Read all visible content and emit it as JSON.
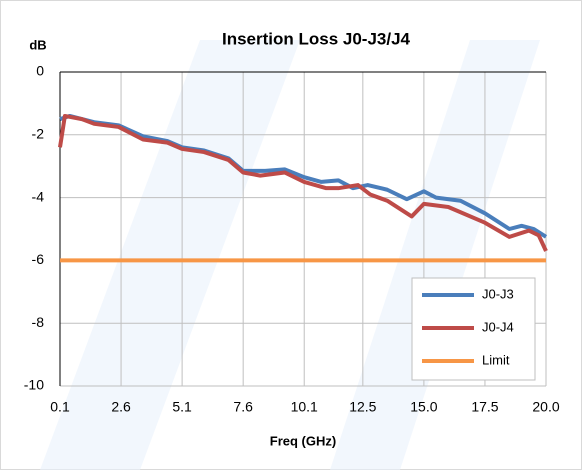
{
  "chart_data": {
    "type": "line",
    "title": "Insertion Loss J0-J3/J4",
    "y_label": "dB",
    "x_label": "Freq (GHz)",
    "xlim": [
      0.1,
      20
    ],
    "xticks": [
      0.1,
      2.6,
      5.1,
      7.6,
      10.1,
      12.5,
      {
        "value": 15,
        "label": "15.0"
      },
      17.5,
      {
        "value": 20,
        "label": "20.0"
      }
    ],
    "ylim": [
      -10,
      0
    ],
    "yticks": [
      0,
      -2,
      -4,
      -6,
      -8,
      -10
    ],
    "grid": true,
    "legend": "lower right",
    "series": [
      {
        "name": "J0-J3",
        "color": "#4a7ebb",
        "x": [
          0.1,
          0.5,
          1,
          1.5,
          2.5,
          3.5,
          4.5,
          5.1,
          6,
          7,
          7.6,
          8.5,
          9.3,
          10.1,
          10.8,
          11.5,
          12.1,
          12.7,
          13.5,
          14.3,
          15,
          15.5,
          16.5,
          17.5,
          18.5,
          19,
          19.5,
          20
        ],
        "values": [
          -1.5,
          -1.4,
          -1.5,
          -1.6,
          -1.7,
          -2.05,
          -2.2,
          -2.4,
          -2.5,
          -2.75,
          -3.15,
          -3.15,
          -3.1,
          -3.35,
          -3.5,
          -3.45,
          -3.7,
          -3.6,
          -3.75,
          -4.05,
          -3.8,
          -4.0,
          -4.1,
          -4.5,
          -5.0,
          -4.9,
          -5.0,
          -5.25
        ]
      },
      {
        "name": "J0-J4",
        "color": "#be4b48",
        "x": [
          0.1,
          0.3,
          1,
          1.5,
          2.5,
          3.5,
          4.5,
          5.1,
          6,
          7,
          7.6,
          8.3,
          9.3,
          10.1,
          11,
          11.5,
          12.3,
          12.8,
          13.5,
          14.5,
          15,
          16,
          17.5,
          18.5,
          19.3,
          19.7,
          20
        ],
        "values": [
          -2.4,
          -1.4,
          -1.5,
          -1.65,
          -1.75,
          -2.15,
          -2.25,
          -2.45,
          -2.55,
          -2.8,
          -3.2,
          -3.3,
          -3.2,
          -3.5,
          -3.7,
          -3.7,
          -3.6,
          -3.9,
          -4.1,
          -4.6,
          -4.2,
          -4.3,
          -4.8,
          -5.25,
          -5.05,
          -5.2,
          -5.7
        ]
      },
      {
        "name": "Limit",
        "color": "#f79646",
        "x": [
          0.1,
          20
        ],
        "values": [
          -6,
          -6
        ]
      }
    ]
  }
}
